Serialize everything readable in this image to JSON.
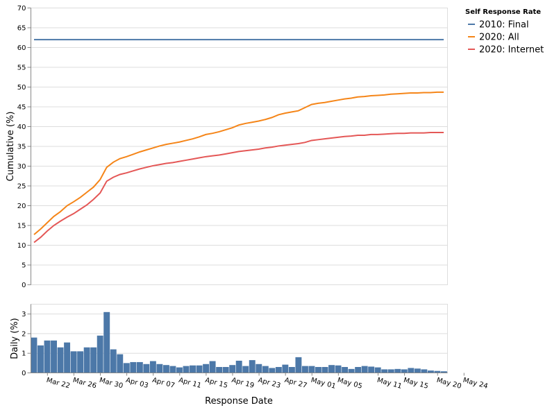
{
  "chart_data": [
    {
      "type": "line",
      "ylabel": "Cumulative (%)",
      "ylim": [
        0,
        70
      ],
      "yticks": [
        0,
        5,
        10,
        15,
        20,
        25,
        30,
        35,
        40,
        45,
        50,
        55,
        60,
        65,
        70
      ],
      "grid": true,
      "x_start": "Mar 21",
      "x_end": "May 25",
      "series": [
        {
          "name": "2010: Final",
          "color": "#4c78a8",
          "values": [
            62,
            62,
            62,
            62,
            62,
            62,
            62,
            62,
            62,
            62,
            62,
            62,
            62,
            62,
            62,
            62,
            62,
            62,
            62,
            62,
            62,
            62,
            62,
            62,
            62,
            62,
            62,
            62,
            62,
            62,
            62,
            62,
            62,
            62,
            62,
            62,
            62,
            62,
            62,
            62,
            62,
            62,
            62,
            62,
            62,
            62,
            62,
            62,
            62,
            62,
            62,
            62,
            62,
            62,
            62,
            62,
            62,
            62,
            62,
            62,
            62,
            62,
            62
          ]
        },
        {
          "name": "2020: All",
          "color": "#f58518",
          "values": [
            12.7,
            14.1,
            15.7,
            17.3,
            18.5,
            20.0,
            21.0,
            22.1,
            23.4,
            24.7,
            26.6,
            29.7,
            31.0,
            31.9,
            32.4,
            33.0,
            33.6,
            34.1,
            34.6,
            35.1,
            35.5,
            35.8,
            36.1,
            36.5,
            36.9,
            37.4,
            38.0,
            38.3,
            38.7,
            39.2,
            39.7,
            40.4,
            40.8,
            41.1,
            41.4,
            41.8,
            42.3,
            43.0,
            43.4,
            43.7,
            44.0,
            44.8,
            45.6,
            45.9,
            46.1,
            46.4,
            46.7,
            47.0,
            47.2,
            47.5,
            47.6,
            47.8,
            47.9,
            48.0,
            48.2,
            48.3,
            48.4,
            48.5,
            48.5,
            48.6,
            48.6,
            48.7,
            48.7
          ]
        },
        {
          "name": "2020: Internet",
          "color": "#e45756",
          "values": [
            10.7,
            12.0,
            13.6,
            15.0,
            16.1,
            17.1,
            18.0,
            19.1,
            20.2,
            21.6,
            23.2,
            26.2,
            27.2,
            27.9,
            28.3,
            28.8,
            29.3,
            29.7,
            30.1,
            30.4,
            30.7,
            30.9,
            31.2,
            31.5,
            31.8,
            32.1,
            32.4,
            32.6,
            32.8,
            33.1,
            33.4,
            33.7,
            33.9,
            34.1,
            34.3,
            34.6,
            34.8,
            35.1,
            35.3,
            35.5,
            35.7,
            36.0,
            36.5,
            36.7,
            36.9,
            37.1,
            37.3,
            37.5,
            37.6,
            37.8,
            37.8,
            38.0,
            38.0,
            38.1,
            38.2,
            38.3,
            38.3,
            38.4,
            38.4,
            38.4,
            38.5,
            38.5,
            38.5
          ]
        }
      ]
    },
    {
      "type": "bar",
      "ylabel": "Daily (%)",
      "xlabel": "Response Date",
      "ylim": [
        0,
        3.5
      ],
      "yticks": [
        0,
        1,
        2,
        3
      ],
      "grid": true,
      "color": "#4c78a8",
      "x_start": "Mar 20",
      "x_ticks": [
        "Mar 22",
        "Mar 26",
        "Mar 30",
        "Apr 03",
        "Apr 07",
        "Apr 11",
        "Apr 15",
        "Apr 19",
        "Apr 23",
        "Apr 27",
        "May 01",
        "May 05",
        "May 11",
        "May 15",
        "May 20",
        "May 24"
      ],
      "values": [
        1.8,
        1.4,
        1.65,
        1.65,
        1.3,
        1.55,
        1.1,
        1.1,
        1.3,
        1.3,
        1.9,
        3.1,
        1.2,
        0.95,
        0.5,
        0.55,
        0.55,
        0.45,
        0.6,
        0.45,
        0.4,
        0.35,
        0.28,
        0.35,
        0.38,
        0.38,
        0.45,
        0.6,
        0.3,
        0.3,
        0.4,
        0.62,
        0.35,
        0.65,
        0.45,
        0.35,
        0.25,
        0.3,
        0.42,
        0.3,
        0.8,
        0.35,
        0.35,
        0.3,
        0.3,
        0.4,
        0.38,
        0.3,
        0.2,
        0.3,
        0.35,
        0.32,
        0.28,
        0.18,
        0.18,
        0.2,
        0.18,
        0.25,
        0.22,
        0.18,
        0.12,
        0.1,
        0.08
      ]
    }
  ],
  "legend": {
    "title": "Self Response Rate",
    "position": "top-right",
    "items": [
      {
        "label": "2010: Final",
        "color": "#4c78a8"
      },
      {
        "label": "2020: All",
        "color": "#f58518"
      },
      {
        "label": "2020: Internet",
        "color": "#e45756"
      }
    ]
  }
}
